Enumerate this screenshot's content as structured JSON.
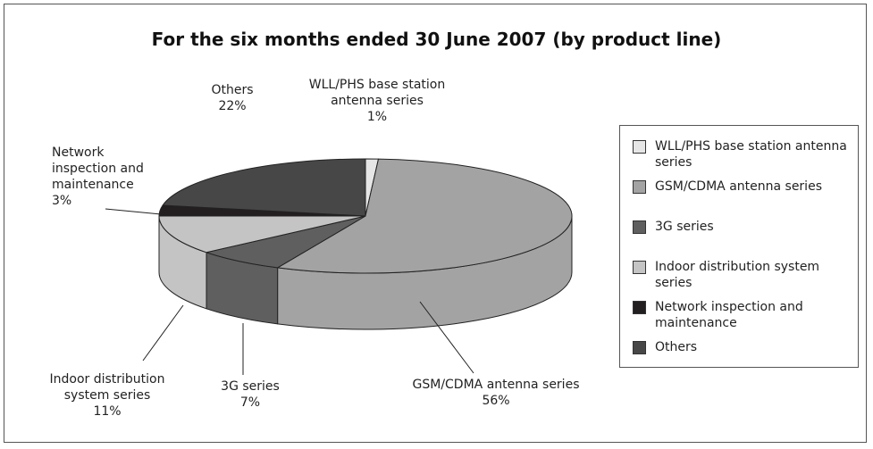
{
  "chart_data": {
    "type": "pie3d",
    "title": "For the six months ended 30 June 2007 (by product line)",
    "categories": [
      "WLL/PHS base station antenna series",
      "GSM/CDMA antenna series",
      "3G series",
      "Indoor distribution system series",
      "Network inspection and maintenance",
      "Others"
    ],
    "values": [
      1,
      56,
      7,
      11,
      3,
      22
    ],
    "value_labels": [
      "1%",
      "56%",
      "7%",
      "11%",
      "3%",
      "22%"
    ],
    "colors": [
      "#e6e6e6",
      "#a3a3a3",
      "#5f5f5f",
      "#c4c4c4",
      "#231f20",
      "#474747"
    ],
    "legend": "right"
  }
}
